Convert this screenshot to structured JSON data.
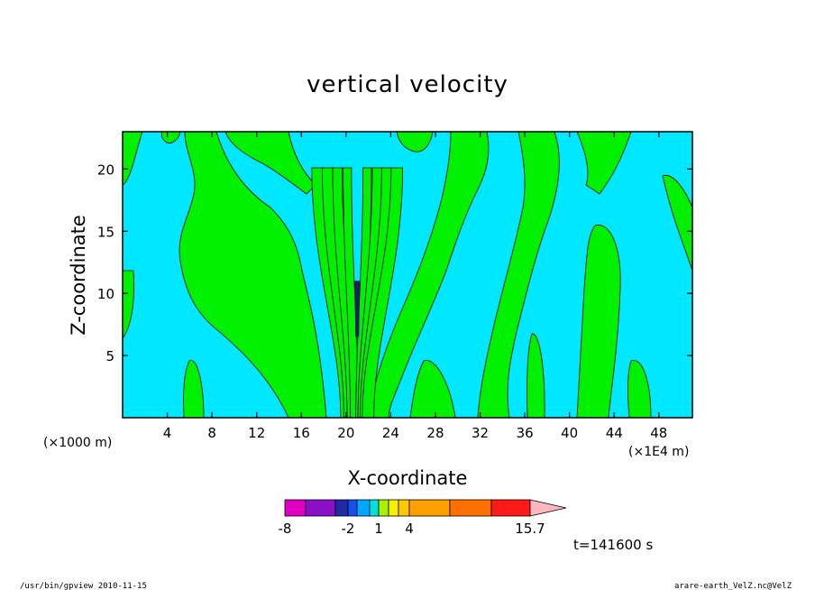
{
  "chart_data": {
    "type": "heatmap",
    "title": "vertical velocity",
    "xlabel": "X-coordinate",
    "ylabel": "Z-coordinate",
    "x_unit_left": "(×1000 m)",
    "x_unit_right": "(×1E4 m)",
    "xlim": [
      0,
      51
    ],
    "ylim": [
      0,
      23
    ],
    "xticks": [
      "4",
      "8",
      "12",
      "16",
      "20",
      "24",
      "28",
      "32",
      "36",
      "40",
      "44",
      "48"
    ],
    "yticks": [
      "5",
      "10",
      "15",
      "20"
    ],
    "colorbar": {
      "colors": [
        "#e000c0",
        "#8a10c8",
        "#1e2aa8",
        "#1450f0",
        "#00a8ff",
        "#00e0e0",
        "#a8f000",
        "#f8f000",
        "#ffc800",
        "#ffa000",
        "#ff7000",
        "#ff1a1a",
        "#ff8080",
        "#ffb8c0"
      ],
      "tick_labels": [
        "-8",
        "-2",
        "1",
        "4",
        "15.7"
      ]
    },
    "time_label": "t=141600 s",
    "background_level": "#00e8ff",
    "positive_level": "#00f000",
    "strong_level": "#1e1e60"
  },
  "footer": {
    "left": "/usr/bin/gpview  2010-11-15",
    "right": "arare-earth_VelZ.nc@VelZ"
  }
}
